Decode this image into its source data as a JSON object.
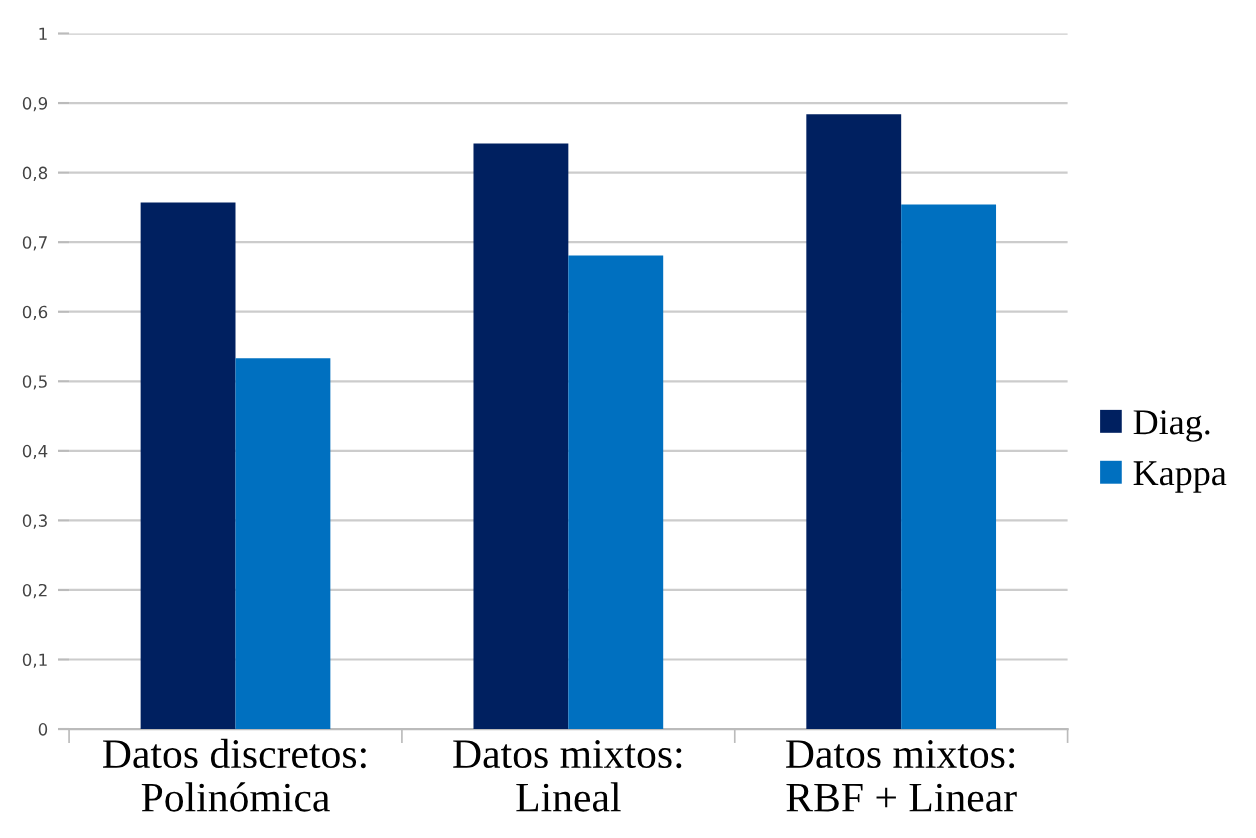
{
  "chart_data": {
    "type": "bar",
    "categories": [
      "Datos discretos:\nPolinómica",
      "Datos mixtos:\nLineal",
      "Datos mixtos:\nRBF + Linear"
    ],
    "series": [
      {
        "name": "Diag.",
        "color": "#002060",
        "values": [
          0.757,
          0.842,
          0.884
        ]
      },
      {
        "name": "Kappa",
        "color": "#0070c0",
        "values": [
          0.533,
          0.681,
          0.754
        ]
      }
    ],
    "ylim": [
      0,
      1
    ],
    "yticks": [
      {
        "value": 0,
        "label": "0"
      },
      {
        "value": 0.1,
        "label": "0,1"
      },
      {
        "value": 0.2,
        "label": "0,2"
      },
      {
        "value": 0.3,
        "label": "0,3"
      },
      {
        "value": 0.4,
        "label": "0,4"
      },
      {
        "value": 0.5,
        "label": "0,5"
      },
      {
        "value": 0.6,
        "label": "0,6"
      },
      {
        "value": 0.7,
        "label": "0,7"
      },
      {
        "value": 0.8,
        "label": "0,8"
      },
      {
        "value": 0.9,
        "label": "0,9"
      },
      {
        "value": 1,
        "label": "1"
      }
    ],
    "grid": "y",
    "legend": "right"
  }
}
